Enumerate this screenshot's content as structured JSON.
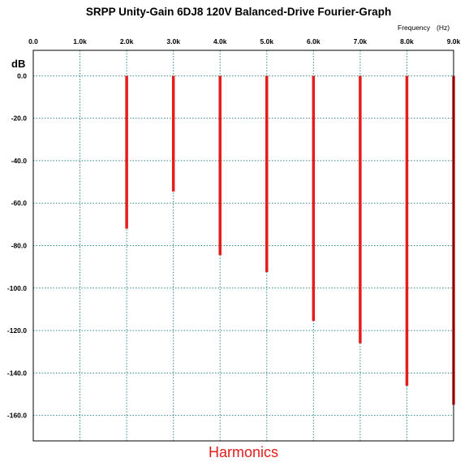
{
  "chart_data": {
    "type": "bar",
    "title": "SRPP Unity-Gain 6DJ8 120V Balanced-Drive Fourier-Graph",
    "x_unit_label": "Frequency",
    "x_unit": "(Hz)",
    "y_unit": "dB",
    "caption": "Harmonics",
    "x_ticks": [
      "0.0",
      "1.0k",
      "2.0k",
      "3.0k",
      "4.0k",
      "5.0k",
      "6.0k",
      "7.0k",
      "8.0k",
      "9.0k"
    ],
    "y_ticks": [
      "0.0",
      "-20.0",
      "-40.0",
      "-60.0",
      "-80.0",
      "-100.0",
      "-120.0",
      "-140.0",
      "-160.0"
    ],
    "xlim": [
      0,
      9000
    ],
    "ylim": [
      -172,
      12
    ],
    "grid": true,
    "bar_base": 0,
    "series": [
      {
        "x": [
          2000,
          3000,
          4000,
          5000,
          6000,
          7000,
          8000,
          9000
        ],
        "values": [
          -72,
          -54.5,
          -84.5,
          -92.5,
          -115.5,
          -126,
          -146,
          -155
        ]
      }
    ],
    "colors": {
      "bar": "#e41c1c",
      "grid": "#2f8a8a",
      "caption": "#e41c1c",
      "frame": "#000000"
    }
  }
}
